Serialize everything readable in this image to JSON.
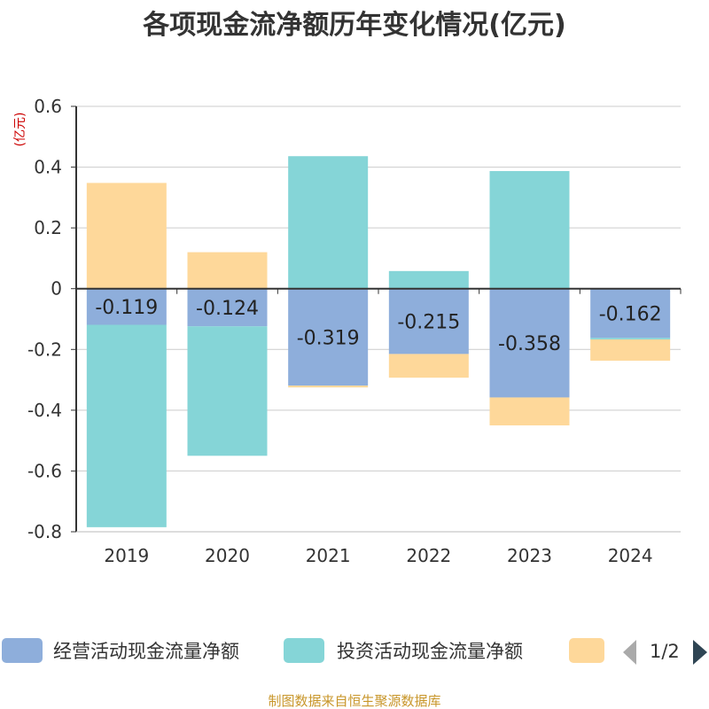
{
  "chart_data": {
    "type": "bar",
    "stacked": true,
    "title": "各项现金流净额历年变化情况(亿元)",
    "unit_label": "(亿元)",
    "categories": [
      "2019",
      "2020",
      "2021",
      "2022",
      "2023",
      "2024"
    ],
    "ylim": [
      -0.8,
      0.6
    ],
    "yticks": [
      "0.6",
      "0.4",
      "0.2",
      "0",
      "-0.2",
      "-0.4",
      "-0.6",
      "-0.8"
    ],
    "grid": true,
    "series": [
      {
        "name": "经营活动现金流量净额",
        "color": "#8eaedb",
        "values": [
          -0.119,
          -0.124,
          -0.319,
          -0.215,
          -0.358,
          -0.162
        ],
        "labels": [
          "-0.119",
          "-0.124",
          "-0.319",
          "-0.215",
          "-0.358",
          "-0.162"
        ]
      },
      {
        "name": "投资活动现金流量净额",
        "color": "#85d5d7",
        "values": [
          -0.666,
          -0.426,
          0.436,
          0.058,
          0.387,
          -0.005
        ]
      },
      {
        "name": "",
        "color": "#fed89a",
        "values": [
          0.348,
          0.12,
          -0.006,
          -0.078,
          -0.092,
          -0.07
        ]
      }
    ]
  },
  "legend": {
    "items": [
      "经营活动现金流量净额",
      "投资活动现金流量净额",
      ""
    ],
    "page": "1/2"
  },
  "source_text": "制图数据来自恒生聚源数据库"
}
